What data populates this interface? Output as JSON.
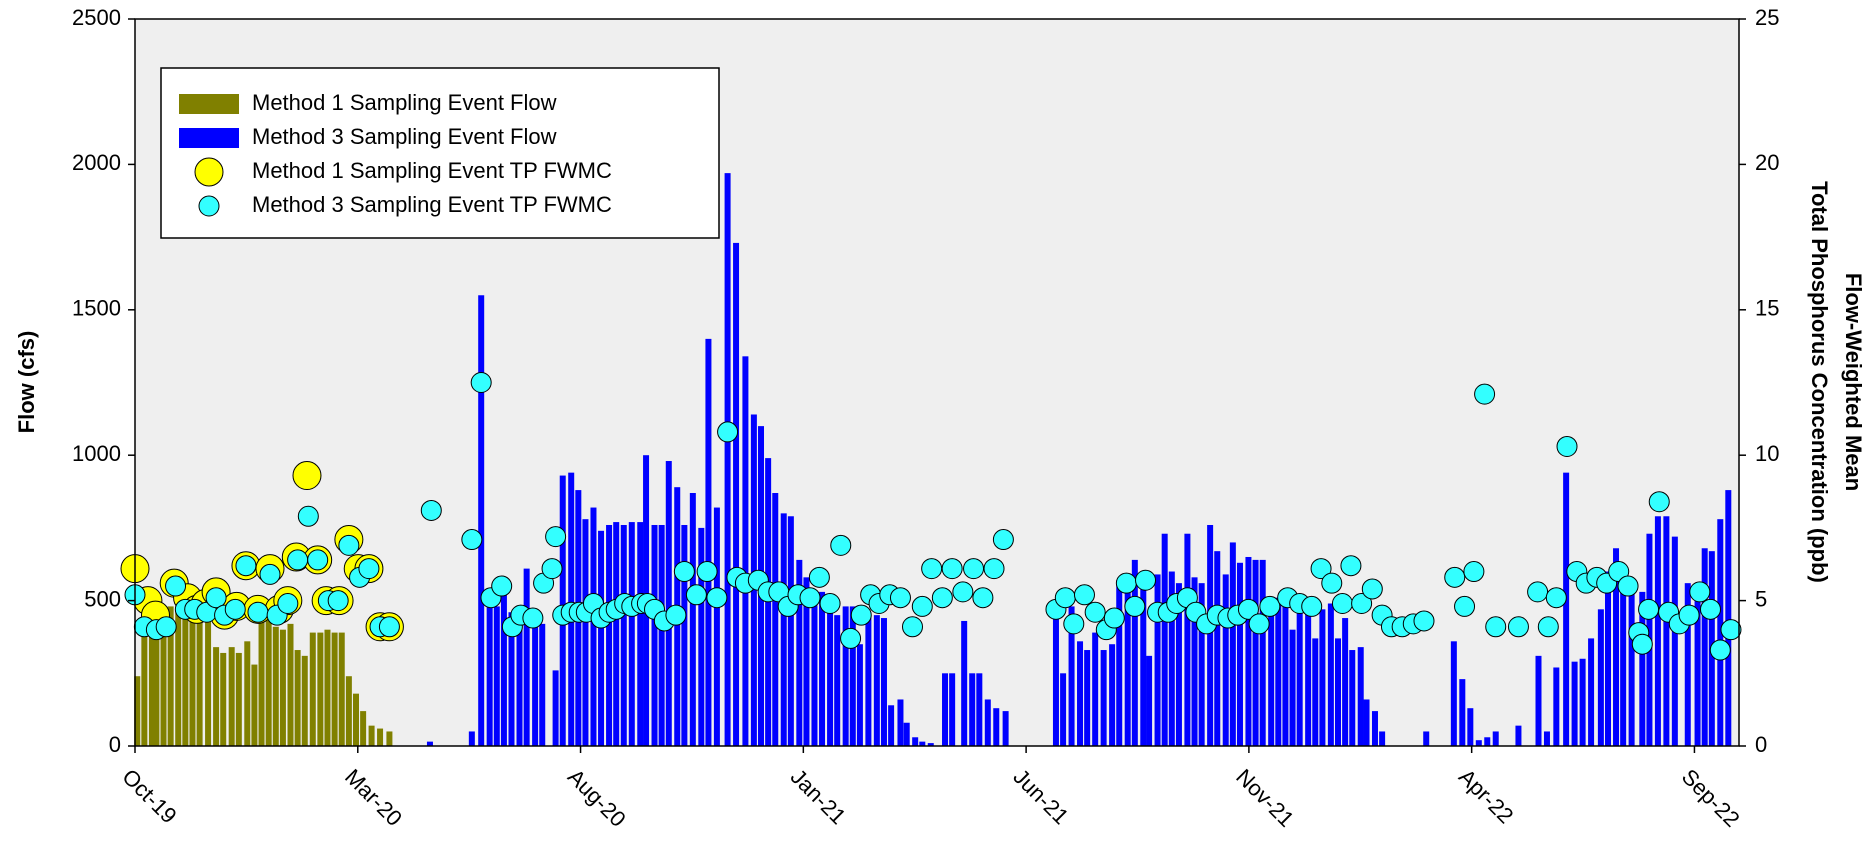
{
  "chart_data": {
    "type": "combo",
    "ylabel": "Flow (cfs)",
    "y2label": [
      "Flow-Weighted Mean",
      "Total Phosphorus Concentration (ppb)"
    ],
    "xlim": [
      0,
      36
    ],
    "xticks": [
      {
        "value": 0,
        "label": "Oct-19"
      },
      {
        "value": 5,
        "label": "Mar-20"
      },
      {
        "value": 10,
        "label": "Aug-20"
      },
      {
        "value": 15,
        "label": "Jan-21"
      },
      {
        "value": 20,
        "label": "Jun-21"
      },
      {
        "value": 25,
        "label": "Nov-21"
      },
      {
        "value": 30,
        "label": "Apr-22"
      },
      {
        "value": 35,
        "label": "Sep-22"
      }
    ],
    "ylim": [
      0,
      2500
    ],
    "yticks": [
      0,
      500,
      1000,
      1500,
      2000,
      2500
    ],
    "y2lim": [
      0,
      25
    ],
    "y2ticks": [
      0,
      5,
      10,
      15,
      20,
      25
    ],
    "legend": "upper left",
    "series": [
      {
        "name": "Method 1 Sampling Event Flow",
        "type": "bar",
        "color": "#808000",
        "x": [
          0.05,
          0.21,
          0.38,
          0.48,
          0.64,
          0.8,
          0.97,
          1.13,
          1.29,
          1.45,
          1.64,
          1.82,
          1.98,
          2.17,
          2.33,
          2.52,
          2.68,
          2.84,
          3.0,
          3.16,
          3.32,
          3.49,
          3.65,
          3.81,
          3.99,
          4.16,
          4.32,
          4.48,
          4.64,
          4.8,
          4.96,
          5.12,
          5.31,
          5.5,
          5.71
        ],
        "values": [
          240,
          500,
          400,
          520,
          470,
          480,
          470,
          530,
          440,
          500,
          470,
          340,
          320,
          340,
          320,
          360,
          280,
          430,
          440,
          410,
          400,
          420,
          330,
          310,
          390,
          390,
          400,
          390,
          390,
          240,
          180,
          120,
          70,
          60,
          50
        ]
      },
      {
        "name": "Method 3 Sampling Event Flow",
        "type": "bar",
        "color": "#0000ff",
        "x": [
          6.62,
          7.56,
          7.77,
          7.96,
          8.12,
          8.28,
          8.45,
          8.63,
          8.79,
          8.98,
          9.14,
          9.44,
          9.6,
          9.79,
          9.95,
          10.11,
          10.29,
          10.46,
          10.64,
          10.8,
          10.97,
          11.15,
          11.34,
          11.47,
          11.66,
          11.82,
          11.98,
          12.17,
          12.33,
          12.52,
          12.71,
          12.87,
          13.06,
          13.3,
          13.49,
          13.7,
          13.89,
          14.05,
          14.21,
          14.37,
          14.56,
          14.72,
          14.91,
          15.07,
          15.25,
          15.42,
          15.6,
          15.76,
          15.95,
          16.11,
          16.27,
          16.46,
          16.65,
          16.81,
          16.97,
          17.18,
          17.32,
          17.51,
          17.67,
          17.86,
          18.18,
          18.34,
          18.61,
          18.79,
          18.95,
          19.14,
          19.33,
          19.54,
          20.67,
          20.83,
          21.02,
          21.21,
          21.37,
          21.55,
          21.74,
          21.93,
          22.09,
          22.28,
          22.44,
          22.63,
          22.76,
          22.95,
          23.11,
          23.27,
          23.43,
          23.62,
          23.78,
          23.94,
          24.13,
          24.29,
          24.48,
          24.64,
          24.8,
          24.99,
          25.15,
          25.31,
          25.5,
          25.66,
          25.82,
          25.98,
          26.14,
          26.33,
          26.49,
          26.65,
          26.84,
          27.0,
          27.16,
          27.32,
          27.51,
          27.64,
          27.83,
          27.99,
          28.98,
          29.6,
          29.79,
          29.97,
          30.16,
          30.35,
          30.54,
          31.05,
          31.5,
          31.69,
          31.9,
          32.12,
          32.31,
          32.49,
          32.68,
          32.9,
          33.06,
          33.24,
          33.4,
          33.59,
          33.83,
          33.99,
          34.18,
          34.37,
          34.56,
          34.85,
          35.07,
          35.23,
          35.39,
          35.58,
          35.76
        ],
        "values": [
          15,
          50,
          1550,
          510,
          480,
          520,
          460,
          480,
          610,
          450,
          420,
          260,
          930,
          940,
          880,
          780,
          820,
          740,
          760,
          770,
          760,
          770,
          770,
          1000,
          760,
          760,
          980,
          890,
          760,
          870,
          750,
          1400,
          820,
          1970,
          1730,
          1340,
          1140,
          1100,
          990,
          870,
          800,
          790,
          640,
          580,
          530,
          530,
          490,
          450,
          480,
          480,
          350,
          460,
          450,
          440,
          140,
          160,
          80,
          30,
          15,
          10,
          250,
          250,
          430,
          250,
          250,
          160,
          130,
          120,
          450,
          250,
          480,
          360,
          330,
          390,
          330,
          350,
          570,
          540,
          640,
          560,
          310,
          590,
          730,
          600,
          560,
          730,
          580,
          560,
          760,
          670,
          590,
          700,
          630,
          650,
          640,
          640,
          500,
          510,
          500,
          400,
          500,
          500,
          370,
          470,
          490,
          370,
          440,
          330,
          340,
          160,
          120,
          50,
          50,
          360,
          230,
          130,
          20,
          30,
          50,
          70,
          310,
          50,
          270,
          940,
          290,
          300,
          370,
          470,
          600,
          680,
          540,
          540,
          530,
          730,
          790,
          790,
          720,
          560,
          530,
          680,
          670,
          780,
          880
        ]
      },
      {
        "name": "Method 1 Sampling Event TP FWMC",
        "type": "scatter",
        "axis": "y2",
        "color": "#ffff00",
        "x": [
          0,
          0.29,
          0.46,
          0.88,
          1.18,
          1.39,
          1.58,
          1.82,
          2.01,
          2.28,
          2.49,
          2.76,
          3.03,
          3.24,
          3.43,
          3.62,
          3.86,
          4.1,
          4.29,
          4.58,
          4.8,
          5.01,
          5.25,
          5.5,
          5.71
        ],
        "values": [
          6.1,
          5.0,
          4.5,
          5.6,
          5.1,
          4.7,
          4.9,
          5.3,
          4.5,
          4.8,
          6.2,
          4.7,
          6.1,
          4.7,
          5.0,
          6.5,
          9.3,
          6.4,
          5.0,
          5.0,
          7.1,
          6.1,
          6.1,
          4.1,
          4.1
        ]
      },
      {
        "name": "Method 3 Sampling Event TP FWMC",
        "type": "scatter",
        "axis": "y2",
        "color": "#33ffff",
        "x": [
          0,
          0.21,
          0.48,
          0.7,
          0.91,
          1.13,
          1.34,
          1.61,
          1.82,
          2.01,
          2.25,
          2.49,
          2.76,
          3.03,
          3.19,
          3.43,
          3.65,
          3.89,
          4.1,
          4.34,
          4.56,
          4.8,
          5.04,
          5.25,
          5.5,
          5.71,
          6.65,
          7.56,
          7.77,
          7.99,
          8.23,
          8.47,
          8.66,
          8.93,
          9.17,
          9.36,
          9.44,
          9.6,
          9.79,
          9.97,
          10.13,
          10.29,
          10.46,
          10.64,
          10.8,
          10.99,
          11.15,
          11.37,
          11.5,
          11.66,
          11.88,
          12.14,
          12.33,
          12.6,
          12.84,
          13.06,
          13.3,
          13.51,
          13.7,
          13.99,
          14.21,
          14.45,
          14.66,
          14.88,
          15.15,
          15.36,
          15.6,
          15.84,
          16.06,
          16.3,
          16.51,
          16.7,
          16.94,
          17.18,
          17.45,
          17.67,
          17.88,
          18.12,
          18.34,
          18.58,
          18.82,
          19.03,
          19.28,
          19.49,
          20.67,
          20.88,
          21.07,
          21.31,
          21.55,
          21.8,
          21.98,
          22.25,
          22.44,
          22.68,
          22.95,
          23.19,
          23.38,
          23.62,
          23.81,
          24.05,
          24.29,
          24.53,
          24.75,
          24.99,
          25.23,
          25.47,
          25.87,
          26.14,
          26.41,
          26.62,
          26.86,
          27.1,
          27.29,
          27.53,
          27.77,
          27.99,
          28.2,
          28.44,
          28.69,
          28.93,
          29.62,
          29.84,
          30.05,
          30.29,
          30.54,
          31.05,
          31.48,
          31.72,
          31.9,
          32.14,
          32.36,
          32.57,
          32.81,
          33.03,
          33.3,
          33.51,
          33.75,
          33.83,
          33.97,
          34.21,
          34.42,
          34.66,
          34.88,
          35.12,
          35.36,
          35.58,
          35.82
        ],
        "values": [
          5.2,
          4.1,
          4.0,
          4.1,
          5.5,
          4.7,
          4.7,
          4.6,
          5.1,
          4.5,
          4.7,
          6.2,
          4.6,
          5.9,
          4.5,
          4.9,
          6.4,
          7.9,
          6.4,
          5.0,
          5.0,
          6.9,
          5.8,
          6.1,
          4.1,
          4.1,
          8.1,
          7.1,
          12.5,
          5.1,
          5.5,
          4.1,
          4.5,
          4.4,
          5.6,
          6.1,
          7.2,
          4.5,
          4.6,
          4.6,
          4.6,
          4.9,
          4.4,
          4.6,
          4.7,
          4.9,
          4.8,
          4.9,
          4.9,
          4.7,
          4.3,
          4.5,
          6.0,
          5.2,
          6.0,
          5.1,
          10.8,
          5.8,
          5.6,
          5.7,
          5.3,
          5.3,
          4.8,
          5.2,
          5.1,
          5.8,
          4.9,
          6.9,
          3.7,
          4.5,
          5.2,
          4.9,
          5.2,
          5.1,
          4.1,
          4.8,
          6.1,
          5.1,
          6.1,
          5.3,
          6.1,
          5.1,
          6.1,
          7.1,
          4.7,
          5.1,
          4.2,
          5.2,
          4.6,
          4.0,
          4.4,
          5.6,
          4.8,
          5.7,
          4.6,
          4.6,
          4.9,
          5.1,
          4.6,
          4.2,
          4.5,
          4.4,
          4.5,
          4.7,
          4.2,
          4.8,
          5.1,
          4.9,
          4.8,
          6.1,
          5.6,
          4.9,
          6.2,
          4.9,
          5.4,
          4.5,
          4.1,
          4.1,
          4.2,
          4.3,
          5.8,
          4.8,
          6.0,
          12.1,
          4.1,
          4.1,
          5.3,
          4.1,
          5.1,
          10.3,
          6.0,
          5.6,
          5.8,
          5.6,
          6.0,
          5.5,
          3.9,
          3.5,
          4.7,
          8.4,
          4.6,
          4.2,
          4.5,
          5.3,
          4.7,
          3.3,
          4.0
        ]
      }
    ]
  }
}
